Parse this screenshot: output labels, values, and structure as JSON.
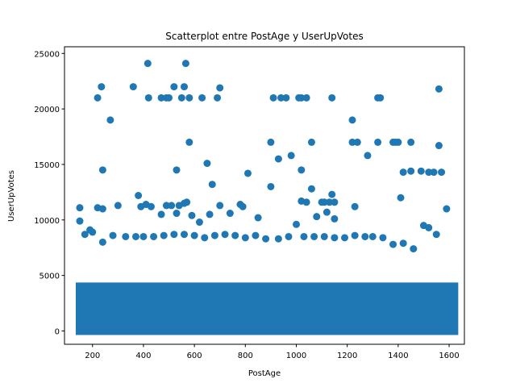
{
  "chart_data": {
    "type": "scatter",
    "title": "Scatterplot entre PostAge y UserUpVotes",
    "xlabel": "PostAge",
    "ylabel": "UserUpVotes",
    "xlim": [
      90,
      1660
    ],
    "ylim": [
      -1200,
      25600
    ],
    "xticks": [
      200,
      400,
      600,
      800,
      1000,
      1200,
      1400,
      1600
    ],
    "yticks": [
      0,
      5000,
      10000,
      15000,
      20000,
      25000
    ],
    "color": "#1f77b4",
    "dense_region": {
      "x": [
        150,
        1620
      ],
      "y": [
        0,
        4000
      ]
    },
    "points": [
      [
        417,
        24100
      ],
      [
        566,
        24100
      ],
      [
        220,
        21000
      ],
      [
        235,
        22000
      ],
      [
        360,
        22000
      ],
      [
        420,
        21000
      ],
      [
        470,
        21000
      ],
      [
        490,
        21000
      ],
      [
        500,
        21000
      ],
      [
        520,
        22000
      ],
      [
        550,
        21000
      ],
      [
        560,
        22000
      ],
      [
        580,
        21000
      ],
      [
        630,
        21000
      ],
      [
        690,
        21000
      ],
      [
        700,
        21900
      ],
      [
        910,
        21000
      ],
      [
        940,
        21000
      ],
      [
        960,
        21000
      ],
      [
        1010,
        21000
      ],
      [
        1020,
        21000
      ],
      [
        1040,
        21000
      ],
      [
        1140,
        21000
      ],
      [
        1320,
        21000
      ],
      [
        1330,
        21000
      ],
      [
        1560,
        21800
      ],
      [
        270,
        19000
      ],
      [
        1220,
        19000
      ],
      [
        580,
        17000
      ],
      [
        900,
        17000
      ],
      [
        1060,
        17000
      ],
      [
        1220,
        17000
      ],
      [
        1240,
        17000
      ],
      [
        1320,
        17000
      ],
      [
        1380,
        17000
      ],
      [
        1390,
        17000
      ],
      [
        1400,
        17000
      ],
      [
        1450,
        17000
      ],
      [
        1560,
        16700
      ],
      [
        650,
        15100
      ],
      [
        930,
        15500
      ],
      [
        980,
        15800
      ],
      [
        1280,
        15800
      ],
      [
        240,
        14500
      ],
      [
        530,
        14500
      ],
      [
        1020,
        14500
      ],
      [
        1420,
        14300
      ],
      [
        1450,
        14400
      ],
      [
        1490,
        14400
      ],
      [
        1520,
        14300
      ],
      [
        1540,
        14300
      ],
      [
        1570,
        14300
      ],
      [
        670,
        13200
      ],
      [
        810,
        14200
      ],
      [
        900,
        13000
      ],
      [
        1060,
        12800
      ],
      [
        380,
        12200
      ],
      [
        390,
        11200
      ],
      [
        410,
        11400
      ],
      [
        430,
        11200
      ],
      [
        490,
        11300
      ],
      [
        510,
        11300
      ],
      [
        540,
        11300
      ],
      [
        560,
        11500
      ],
      [
        570,
        11600
      ],
      [
        700,
        11300
      ],
      [
        780,
        11400
      ],
      [
        790,
        11200
      ],
      [
        1020,
        11700
      ],
      [
        1040,
        11600
      ],
      [
        1100,
        11600
      ],
      [
        1110,
        11600
      ],
      [
        1130,
        11600
      ],
      [
        1140,
        12300
      ],
      [
        1150,
        11600
      ],
      [
        1230,
        11200
      ],
      [
        1410,
        12000
      ],
      [
        1590,
        11000
      ],
      [
        150,
        11100
      ],
      [
        220,
        11100
      ],
      [
        240,
        11000
      ],
      [
        300,
        11300
      ],
      [
        150,
        9900
      ],
      [
        170,
        8700
      ],
      [
        190,
        9100
      ],
      [
        200,
        8900
      ],
      [
        240,
        8000
      ],
      [
        280,
        8600
      ],
      [
        330,
        8500
      ],
      [
        370,
        8500
      ],
      [
        400,
        8500
      ],
      [
        440,
        8500
      ],
      [
        480,
        8600
      ],
      [
        520,
        8700
      ],
      [
        560,
        8700
      ],
      [
        600,
        8600
      ],
      [
        640,
        8400
      ],
      [
        680,
        8600
      ],
      [
        720,
        8700
      ],
      [
        760,
        8600
      ],
      [
        800,
        8400
      ],
      [
        840,
        8600
      ],
      [
        880,
        8300
      ],
      [
        930,
        8300
      ],
      [
        970,
        8500
      ],
      [
        1000,
        9600
      ],
      [
        1030,
        8500
      ],
      [
        1070,
        8500
      ],
      [
        1110,
        8500
      ],
      [
        1150,
        8400
      ],
      [
        1190,
        8400
      ],
      [
        1230,
        8600
      ],
      [
        1270,
        8500
      ],
      [
        1300,
        8500
      ],
      [
        1340,
        8400
      ],
      [
        1380,
        7800
      ],
      [
        1420,
        7900
      ],
      [
        1460,
        7400
      ],
      [
        1500,
        9500
      ],
      [
        1520,
        9300
      ],
      [
        1550,
        8700
      ],
      [
        470,
        10500
      ],
      [
        530,
        10600
      ],
      [
        590,
        10400
      ],
      [
        620,
        9800
      ],
      [
        660,
        10500
      ],
      [
        740,
        10600
      ],
      [
        850,
        10200
      ],
      [
        1080,
        10300
      ],
      [
        1120,
        10700
      ],
      [
        1150,
        10100
      ]
    ]
  }
}
